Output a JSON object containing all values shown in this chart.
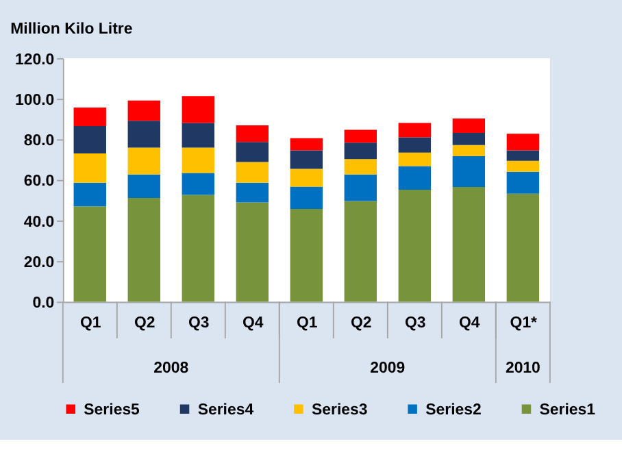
{
  "chart_data": {
    "type": "bar",
    "title": "Million Kilo Litre",
    "stacked": true,
    "categories": [
      "Q1",
      "Q2",
      "Q3",
      "Q4",
      "Q1",
      "Q2",
      "Q3",
      "Q4",
      "Q1*"
    ],
    "series": [
      {
        "name": "Series1",
        "color": "#77933c",
        "values": [
          47.0,
          51.1,
          52.6,
          48.9,
          45.7,
          49.6,
          55.2,
          56.5,
          53.2
        ]
      },
      {
        "name": "Series2",
        "color": "#0070c0",
        "values": [
          11.6,
          11.6,
          10.8,
          9.7,
          11.0,
          13.1,
          11.6,
          15.3,
          10.8
        ]
      },
      {
        "name": "Series3",
        "color": "#ffc000",
        "values": [
          14.5,
          13.2,
          12.5,
          10.2,
          8.8,
          7.6,
          6.7,
          5.4,
          5.4
        ]
      },
      {
        "name": "Series4",
        "color": "#1f3864",
        "values": [
          13.5,
          13.3,
          12.2,
          9.9,
          9.1,
          8.1,
          7.5,
          6.0,
          5.2
        ]
      },
      {
        "name": "Series5",
        "color": "#ff0000",
        "values": [
          9.1,
          9.9,
          13.2,
          8.2,
          6.0,
          6.3,
          7.1,
          7.1,
          8.2
        ]
      }
    ],
    "annotations": [
      "2008",
      "2009",
      "2010"
    ],
    "ylim": [
      0,
      120
    ],
    "yticks": [
      {
        "value": 0,
        "label": "0.0"
      },
      {
        "value": 20,
        "label": "20.0"
      },
      {
        "value": 40,
        "label": "40.0"
      },
      {
        "value": 60,
        "label": "60.0"
      },
      {
        "value": 80,
        "label": "80.0"
      },
      {
        "value": 100,
        "label": "100.0"
      },
      {
        "value": 120,
        "label": "120.0"
      }
    ],
    "grid": false,
    "legend": "bottom"
  }
}
